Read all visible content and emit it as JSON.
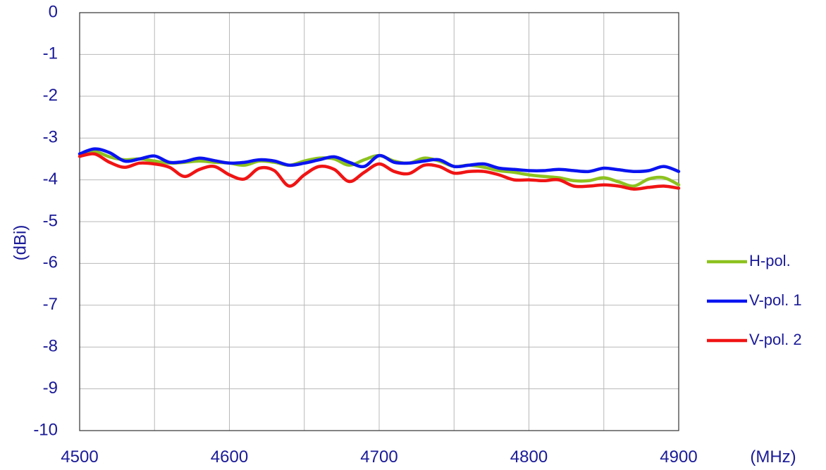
{
  "chart_data": {
    "type": "line",
    "xlabel": "(MHz)",
    "ylabel": "(dBi)",
    "xlim": [
      4500,
      4900
    ],
    "ylim": [
      -10,
      0
    ],
    "x_ticks": [
      "4500",
      "4600",
      "4700",
      "4800",
      "4900"
    ],
    "y_ticks": [
      "0",
      "-1",
      "-2",
      "-3",
      "-4",
      "-5",
      "-6",
      "-7",
      "-8",
      "-9",
      "-10"
    ],
    "grid": true,
    "legend_position": "right",
    "x": [
      4500,
      4510,
      4520,
      4530,
      4540,
      4550,
      4560,
      4570,
      4580,
      4590,
      4600,
      4610,
      4620,
      4630,
      4640,
      4650,
      4660,
      4670,
      4680,
      4690,
      4700,
      4710,
      4720,
      4730,
      4740,
      4750,
      4760,
      4770,
      4780,
      4790,
      4800,
      4810,
      4820,
      4830,
      4840,
      4850,
      4860,
      4870,
      4880,
      4890,
      4900
    ],
    "series": [
      {
        "name": "H-pol.",
        "color": "#8dc21f",
        "values": [
          -3.38,
          -3.32,
          -3.45,
          -3.52,
          -3.5,
          -3.55,
          -3.6,
          -3.58,
          -3.55,
          -3.58,
          -3.6,
          -3.65,
          -3.55,
          -3.58,
          -3.65,
          -3.55,
          -3.48,
          -3.5,
          -3.65,
          -3.52,
          -3.42,
          -3.55,
          -3.6,
          -3.48,
          -3.55,
          -3.68,
          -3.65,
          -3.7,
          -3.78,
          -3.82,
          -3.88,
          -3.92,
          -3.95,
          -4.02,
          -4.02,
          -3.95,
          -4.05,
          -4.15,
          -3.98,
          -3.95,
          -4.12
        ]
      },
      {
        "name": "V-pol. 1",
        "color": "#0a14f0",
        "values": [
          -3.38,
          -3.26,
          -3.35,
          -3.55,
          -3.5,
          -3.43,
          -3.58,
          -3.56,
          -3.48,
          -3.54,
          -3.6,
          -3.58,
          -3.52,
          -3.55,
          -3.65,
          -3.6,
          -3.52,
          -3.45,
          -3.58,
          -3.68,
          -3.42,
          -3.58,
          -3.6,
          -3.55,
          -3.52,
          -3.68,
          -3.65,
          -3.62,
          -3.72,
          -3.75,
          -3.78,
          -3.78,
          -3.75,
          -3.78,
          -3.8,
          -3.72,
          -3.76,
          -3.8,
          -3.78,
          -3.68,
          -3.8
        ]
      },
      {
        "name": "V-pol. 2",
        "color": "#f01414",
        "values": [
          -3.44,
          -3.38,
          -3.58,
          -3.7,
          -3.6,
          -3.62,
          -3.7,
          -3.92,
          -3.75,
          -3.68,
          -3.88,
          -3.98,
          -3.72,
          -3.78,
          -4.15,
          -3.88,
          -3.68,
          -3.75,
          -4.04,
          -3.82,
          -3.62,
          -3.8,
          -3.85,
          -3.65,
          -3.68,
          -3.84,
          -3.8,
          -3.8,
          -3.88,
          -4.0,
          -4.0,
          -4.02,
          -4.0,
          -4.15,
          -4.15,
          -4.12,
          -4.15,
          -4.22,
          -4.18,
          -4.15,
          -4.2
        ]
      }
    ]
  }
}
